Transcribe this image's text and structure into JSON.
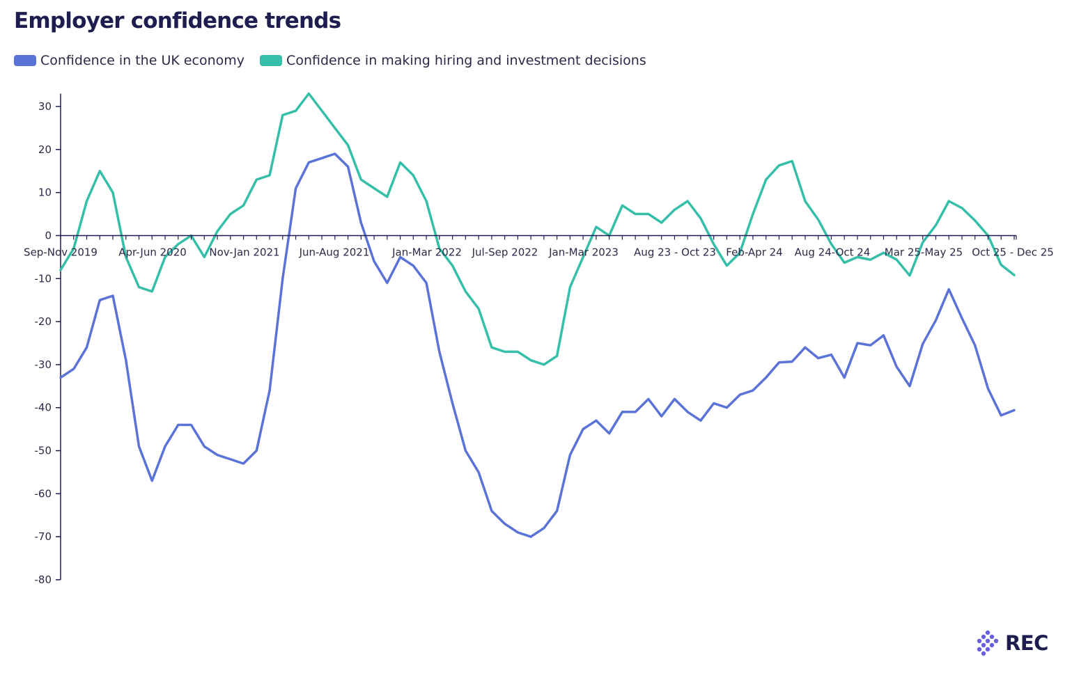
{
  "colors": {
    "economy": "#5b72d6",
    "hiring": "#36bfa8",
    "axis": "#1f1d4f",
    "logo_dot": "#6a5ee0"
  },
  "logo": {
    "text": "REC",
    "icon": "rec-dots-icon"
  },
  "chart_data": {
    "type": "line",
    "title": "Employer confidence trends",
    "xlabel": "",
    "ylabel": "",
    "ylim": [
      -80,
      33
    ],
    "yticks": [
      30,
      20,
      10,
      0,
      -10,
      -20,
      -30,
      -40,
      -50,
      -60,
      -70,
      -80
    ],
    "grid": false,
    "legend": "top-left",
    "x_tick_labels": [
      {
        "index": 0,
        "label": "Sep-Nov 2019"
      },
      {
        "index": 7,
        "label": "Apr-Jun 2020"
      },
      {
        "index": 14,
        "label": "Nov-Jan 2021"
      },
      {
        "index": 21,
        "label": "Jun-Aug 2021"
      },
      {
        "index": 28,
        "label": "Jan-Mar 2022"
      },
      {
        "index": 34,
        "label": "Jul-Sep 2022"
      },
      {
        "index": 40,
        "label": "Jan-Mar 2023"
      },
      {
        "index": 47,
        "label": "Aug 23 - Oct 23"
      },
      {
        "index": 53,
        "label": "Feb-Apr 24"
      },
      {
        "index": 59,
        "label": "Aug 24-Oct 24"
      },
      {
        "index": 66,
        "label": "Mar 25-May 25"
      },
      {
        "index": 73,
        "label": "Oct 25 - Dec 25"
      }
    ],
    "series": [
      {
        "name": "Confidence in the UK economy",
        "values": [
          -33,
          -31,
          -26,
          -15,
          -14,
          -29,
          -49,
          -57,
          -49,
          -44,
          -44,
          -49,
          -51,
          -52,
          -53,
          -50,
          -36,
          -10,
          11,
          17,
          18,
          19,
          16,
          3,
          -6,
          -11,
          -5,
          -7,
          -11,
          -27,
          -39,
          -50,
          -55,
          -64,
          -67,
          -69,
          -70,
          -68,
          -64,
          -51,
          -45,
          -43,
          -46,
          -41,
          -41,
          -38,
          -42,
          -38,
          -41,
          -43,
          -39,
          -40,
          -37,
          -36,
          -33,
          -29.5,
          -29.3,
          -26,
          -28.5,
          -27.7,
          -33,
          -25,
          -25.5,
          -23.2,
          -30.5,
          -35,
          -25.2,
          -19.7,
          -12.5,
          -19.2,
          -25.5,
          -35.6,
          -41.8,
          -40.6
        ]
      },
      {
        "name": "Confidence in making hiring and investment decisions",
        "values": [
          -8,
          -3,
          8,
          15,
          10,
          -5,
          -12,
          -13,
          -5,
          -2,
          0,
          -5,
          1,
          5,
          7,
          13,
          14,
          28,
          29,
          33,
          29,
          25,
          21,
          13,
          11,
          9,
          17,
          14,
          8,
          -3,
          -7,
          -13,
          -17,
          -26,
          -27,
          -27,
          -29,
          -30,
          -28,
          -12,
          -5,
          2,
          0,
          7,
          5,
          5,
          3,
          6,
          8,
          4,
          -2,
          -7,
          -4,
          5,
          13,
          16.3,
          17.3,
          8,
          3.7,
          -2,
          -6.3,
          -5,
          -5.6,
          -4,
          -5.6,
          -9.3,
          -1.6,
          2.4,
          8,
          6.4,
          3.5,
          0,
          -6.8,
          -9.2
        ]
      }
    ]
  }
}
